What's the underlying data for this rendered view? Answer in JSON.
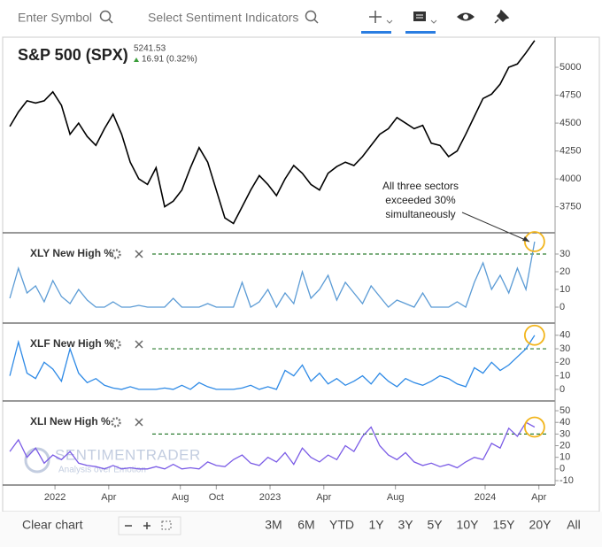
{
  "toolbar": {
    "symbol_placeholder": "Enter Symbol",
    "indicator_placeholder": "Select Sentiment Indicators"
  },
  "footer": {
    "clear": "Clear chart",
    "ranges": [
      "3M",
      "6M",
      "YTD",
      "1Y",
      "3Y",
      "5Y",
      "10Y",
      "15Y",
      "20Y",
      "All"
    ]
  },
  "chart_data": {
    "type": "line",
    "watermark": "SENTIMENTRADER",
    "watermark_tagline": "Analysis over Emotion",
    "annotation": [
      "All three sectors",
      "exceeded 30%",
      "simultaneously"
    ],
    "x": [
      2021.79,
      2021.83,
      2021.87,
      2021.91,
      2021.95,
      2021.99,
      2022.03,
      2022.07,
      2022.11,
      2022.15,
      2022.19,
      2022.23,
      2022.27,
      2022.31,
      2022.35,
      2022.39,
      2022.43,
      2022.47,
      2022.51,
      2022.55,
      2022.59,
      2022.63,
      2022.67,
      2022.71,
      2022.75,
      2022.79,
      2022.83,
      2022.87,
      2022.91,
      2022.95,
      2022.99,
      2023.03,
      2023.07,
      2023.11,
      2023.15,
      2023.19,
      2023.23,
      2023.27,
      2023.31,
      2023.35,
      2023.39,
      2023.43,
      2023.47,
      2023.51,
      2023.55,
      2023.59,
      2023.63,
      2023.67,
      2023.71,
      2023.75,
      2023.79,
      2023.83,
      2023.87,
      2023.91,
      2023.95,
      2023.99,
      2024.03,
      2024.07,
      2024.11,
      2024.15,
      2024.19,
      2024.23
    ],
    "xlim": [
      2021.765,
      2024.317
    ],
    "xticks": [
      2022,
      {
        "value": 2022.25,
        "label": "Apr"
      },
      {
        "value": 2022.583,
        "label": "Aug"
      },
      {
        "value": 2022.75,
        "label": "Oct"
      },
      2023,
      {
        "value": 2023.25,
        "label": "Apr"
      },
      {
        "value": 2023.583,
        "label": "Aug"
      },
      2024,
      {
        "value": 2024.25,
        "label": "Apr"
      }
    ],
    "panels": [
      {
        "title": "S&P 500 (SPX)",
        "last": "5241.53",
        "change": "16.91 (0.32%)",
        "ylim": [
          3525,
          5270
        ],
        "yticks": [
          3750,
          4000,
          4250,
          4500,
          4750,
          5000
        ],
        "series": [
          {
            "color": "#000000",
            "values": [
              4470,
              4600,
              4700,
              4680,
              4700,
              4780,
              4660,
              4400,
              4500,
              4380,
              4300,
              4450,
              4580,
              4400,
              4150,
              4000,
              3950,
              4100,
              3750,
              3800,
              3900,
              4100,
              4280,
              4150,
              3900,
              3650,
              3600,
              3750,
              3900,
              4030,
              3950,
              3850,
              4000,
              4120,
              4050,
              3950,
              3900,
              4050,
              4110,
              4150,
              4120,
              4200,
              4300,
              4400,
              4450,
              4550,
              4500,
              4450,
              4480,
              4320,
              4300,
              4200,
              4250,
              4400,
              4560,
              4720,
              4760,
              4850,
              5000,
              5030,
              5130,
              5240
            ]
          }
        ]
      },
      {
        "title": "XLY New High %",
        "threshold": 30,
        "ylim": [
          -8.5,
          42
        ],
        "yticks": [
          0,
          10,
          20,
          30
        ],
        "series": [
          {
            "color": "#5b9bd5",
            "values": [
              5,
              22,
              8,
              12,
              3,
              15,
              6,
              2,
              10,
              4,
              0,
              0,
              3,
              0,
              0,
              1,
              0,
              0,
              0,
              5,
              0,
              0,
              0,
              2,
              0,
              0,
              0,
              14,
              0,
              3,
              10,
              0,
              8,
              2,
              20,
              5,
              10,
              18,
              4,
              14,
              8,
              2,
              12,
              6,
              0,
              4,
              2,
              0,
              8,
              0,
              0,
              0,
              3,
              0,
              14,
              25,
              10,
              18,
              8,
              22,
              10,
              37
            ]
          }
        ]
      },
      {
        "title": "XLF New High %",
        "threshold": 30,
        "ylim": [
          -7.9,
          49
        ],
        "yticks": [
          0,
          10,
          20,
          30,
          40
        ],
        "series": [
          {
            "color": "#2e8ae6",
            "values": [
              10,
              35,
              12,
              8,
              20,
              15,
              6,
              30,
              12,
              5,
              8,
              3,
              1,
              0,
              2,
              0,
              0,
              0,
              1,
              0,
              3,
              0,
              5,
              2,
              0,
              0,
              0,
              1,
              3,
              0,
              2,
              0,
              14,
              10,
              18,
              6,
              12,
              4,
              8,
              3,
              6,
              10,
              4,
              12,
              6,
              2,
              8,
              5,
              3,
              6,
              10,
              8,
              4,
              2,
              16,
              12,
              20,
              14,
              18,
              24,
              30,
              40
            ]
          }
        ]
      },
      {
        "title": "XLI New High %",
        "threshold": 30,
        "ylim": [
          -13.8,
          58.4
        ],
        "yticks": [
          -10,
          0,
          10,
          20,
          30,
          40,
          50
        ],
        "series": [
          {
            "color": "#7b5ce6",
            "values": [
              15,
              25,
              10,
              18,
              5,
              12,
              8,
              15,
              5,
              3,
              2,
              0,
              3,
              0,
              1,
              0,
              0,
              2,
              0,
              4,
              0,
              1,
              0,
              6,
              3,
              2,
              8,
              12,
              5,
              3,
              10,
              6,
              14,
              4,
              18,
              10,
              6,
              12,
              8,
              20,
              15,
              28,
              36,
              20,
              12,
              8,
              14,
              6,
              3,
              5,
              2,
              4,
              1,
              6,
              10,
              8,
              22,
              18,
              35,
              28,
              40,
              36
            ]
          }
        ]
      }
    ]
  }
}
